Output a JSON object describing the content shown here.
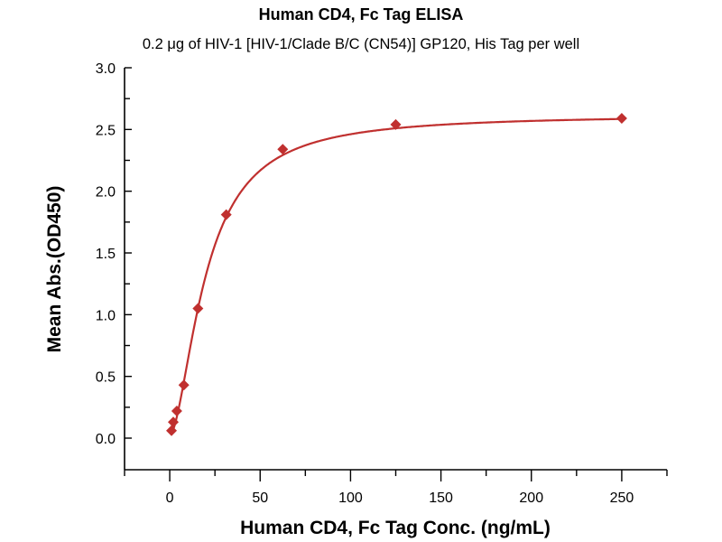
{
  "chart_data": {
    "type": "scatter",
    "title": "Human CD4, Fc Tag ELISA",
    "subtitle": "0.2 μg of HIV-1 [HIV-1/Clade B/C (CN54)] GP120, His Tag per well",
    "xlabel": "Human CD4, Fc Tag Conc. (ng/mL)",
    "ylabel": "Mean Abs.(OD450)",
    "xlim": [
      -25,
      275
    ],
    "ylim": [
      -0.256,
      3.0
    ],
    "xticks": [
      0,
      50,
      100,
      150,
      200,
      250
    ],
    "xtick_labels": [
      "0",
      "50",
      "100",
      "150",
      "200",
      "250"
    ],
    "yticks": [
      0.0,
      0.5,
      1.0,
      1.5,
      2.0,
      2.5,
      3.0
    ],
    "ytick_labels": [
      "0.0",
      "0.5",
      "1.0",
      "1.5",
      "2.0",
      "2.5",
      "3.0"
    ],
    "grid": false,
    "color": "#c0302f",
    "series": [
      {
        "name": "Human CD4, Fc Tag",
        "x": [
          0.98,
          1.95,
          3.9,
          7.8,
          15.6,
          31.25,
          62.5,
          125,
          250
        ],
        "y": [
          0.06,
          0.13,
          0.22,
          0.43,
          1.05,
          1.81,
          2.34,
          2.54,
          2.59
        ],
        "marker": "diamond",
        "fit": {
          "model": "4PL",
          "bottom": 0.02,
          "top": 2.62,
          "ec50": 20,
          "hill": 1.7
        }
      }
    ]
  }
}
